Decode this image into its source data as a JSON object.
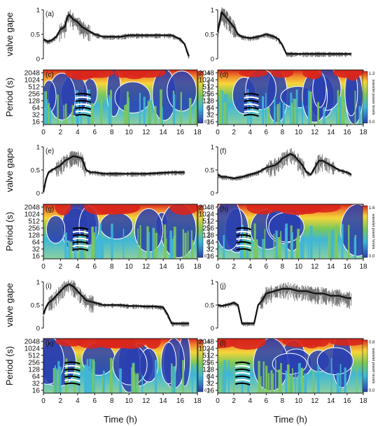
{
  "figure": {
    "row_ylabels": {
      "gape": "valve gape",
      "period": "Period (s)"
    },
    "xlabel": "Time (h)",
    "xticks": [
      0,
      2,
      4,
      6,
      8,
      10,
      12,
      14,
      16,
      18
    ],
    "gape_yticks": [
      0,
      0.5,
      1
    ],
    "period_yticks": [
      2048,
      1024,
      512,
      256,
      128,
      64,
      32,
      16
    ],
    "colorbar_label": "wavelet power levels",
    "colors": {
      "trace": "#111111",
      "power_low": "#2a3fb0",
      "power_mid": "#3fb6d6",
      "power_green": "#7cc85a",
      "power_high": "#f6d63a",
      "power_peak": "#d9261c"
    }
  },
  "chart_data": [
    {
      "panel": "(a)",
      "type": "line",
      "ylabel": "valve gape",
      "xlim": [
        0,
        18
      ],
      "ylim": [
        0,
        1
      ],
      "series": [
        {
          "x": [
            0,
            0.5,
            1,
            1.5,
            2,
            2.5,
            2.8,
            3,
            3.5,
            4,
            4.5,
            5,
            5.5,
            6,
            7,
            8,
            9,
            10,
            11,
            12,
            13,
            14,
            15,
            16,
            16.5,
            17
          ],
          "y": [
            0.4,
            0.35,
            0.38,
            0.45,
            0.6,
            0.65,
            0.85,
            0.9,
            0.8,
            0.75,
            0.65,
            0.6,
            0.55,
            0.5,
            0.45,
            0.45,
            0.45,
            0.48,
            0.48,
            0.48,
            0.48,
            0.48,
            0.48,
            0.4,
            0.3,
            0.05
          ]
        }
      ]
    },
    {
      "panel": "(b)",
      "type": "line",
      "ylabel": "valve gape",
      "xlim": [
        0,
        18
      ],
      "ylim": [
        0,
        1
      ],
      "series": [
        {
          "x": [
            0,
            0.3,
            0.5,
            1,
            1.5,
            2,
            2.5,
            3,
            4,
            5,
            6,
            7,
            7.5,
            8,
            8.5,
            9,
            10,
            11,
            12,
            13,
            14,
            15,
            16,
            16.5
          ],
          "y": [
            0.55,
            0.8,
            0.95,
            0.85,
            0.75,
            0.65,
            0.5,
            0.45,
            0.42,
            0.45,
            0.5,
            0.45,
            0.4,
            0.28,
            0.1,
            0.1,
            0.1,
            0.1,
            0.1,
            0.1,
            0.1,
            0.1,
            0.1,
            0.1
          ]
        }
      ]
    },
    {
      "panel": "(c)",
      "type": "heatmap",
      "ylabel": "Period (s)",
      "xlim": [
        0,
        18
      ],
      "colorbar": {
        "max": "1.9",
        "min": "0.0"
      }
    },
    {
      "panel": "(d)",
      "type": "heatmap",
      "ylabel": "Period (s)",
      "xlim": [
        0,
        18
      ],
      "colorbar": {
        "max": "1.3",
        "min": "0.0"
      }
    },
    {
      "panel": "(e)",
      "type": "line",
      "ylabel": "valve gape",
      "xlim": [
        0,
        18
      ],
      "ylim": [
        0,
        1
      ],
      "series": [
        {
          "x": [
            0,
            0.3,
            0.6,
            1,
            1.5,
            2,
            2.5,
            3,
            3.5,
            4,
            4.5,
            5,
            5.5,
            6,
            7,
            8,
            9,
            10,
            11,
            12,
            13,
            14,
            15,
            16,
            16.5
          ],
          "y": [
            0.02,
            0.3,
            0.45,
            0.5,
            0.55,
            0.6,
            0.7,
            0.75,
            0.8,
            0.78,
            0.75,
            0.5,
            0.45,
            0.45,
            0.42,
            0.42,
            0.42,
            0.42,
            0.42,
            0.42,
            0.43,
            0.44,
            0.45,
            0.45,
            0.45
          ]
        }
      ]
    },
    {
      "panel": "(f)",
      "type": "line",
      "ylabel": "valve gape",
      "xlim": [
        0,
        18
      ],
      "ylim": [
        0,
        1
      ],
      "series": [
        {
          "x": [
            0,
            0.5,
            1,
            2,
            3,
            4,
            5,
            5.5,
            6,
            7,
            7.5,
            8,
            9,
            9.5,
            10,
            10.5,
            11,
            11.5,
            12,
            12.5,
            13,
            14,
            15,
            16,
            16.5
          ],
          "y": [
            0.4,
            0.35,
            0.35,
            0.32,
            0.35,
            0.4,
            0.45,
            0.5,
            0.55,
            0.6,
            0.65,
            0.75,
            0.85,
            0.8,
            0.7,
            0.6,
            0.45,
            0.4,
            0.55,
            0.7,
            0.7,
            0.6,
            0.5,
            0.45,
            0.4
          ]
        }
      ]
    },
    {
      "panel": "(g)",
      "type": "heatmap",
      "ylabel": "Period (s)",
      "xlim": [
        0,
        18
      ],
      "colorbar": {
        "max": "1.1",
        "min": "0.0"
      }
    },
    {
      "panel": "(h)",
      "type": "heatmap",
      "ylabel": "Period (s)",
      "xlim": [
        0,
        18
      ],
      "colorbar": {
        "max": "1.6",
        "min": "0.0"
      }
    },
    {
      "panel": "(i)",
      "type": "line",
      "ylabel": "valve gape",
      "xlim": [
        0,
        18
      ],
      "ylim": [
        0,
        1
      ],
      "series": [
        {
          "x": [
            0,
            0.3,
            0.6,
            1,
            1.5,
            2,
            2.5,
            3,
            3.5,
            4,
            4.5,
            5,
            6,
            7,
            8,
            9,
            10,
            11,
            12,
            13,
            14,
            14.5,
            15,
            16,
            17
          ],
          "y": [
            0.3,
            0.45,
            0.55,
            0.6,
            0.7,
            0.8,
            0.9,
            0.95,
            0.9,
            0.8,
            0.7,
            0.6,
            0.55,
            0.5,
            0.5,
            0.5,
            0.48,
            0.48,
            0.47,
            0.47,
            0.45,
            0.3,
            0.1,
            0.1,
            0.1
          ]
        }
      ]
    },
    {
      "panel": "(j)",
      "type": "line",
      "ylabel": "valve gape",
      "xlim": [
        0,
        18
      ],
      "ylim": [
        0,
        1
      ],
      "series": [
        {
          "x": [
            0,
            0.5,
            1,
            1.5,
            2,
            2.5,
            3,
            3.5,
            4,
            4.5,
            5,
            5.5,
            6,
            7,
            8,
            9,
            10,
            11,
            12,
            13,
            14,
            15,
            16,
            16.5
          ],
          "y": [
            0.5,
            0.48,
            0.5,
            0.52,
            0.55,
            0.5,
            0.1,
            0.1,
            0.1,
            0.1,
            0.5,
            0.6,
            0.75,
            0.8,
            0.85,
            0.85,
            0.8,
            0.8,
            0.75,
            0.75,
            0.7,
            0.7,
            0.65,
            0.65
          ]
        }
      ]
    },
    {
      "panel": "(k)",
      "type": "heatmap",
      "ylabel": "Period (s)",
      "xlim": [
        0,
        18
      ],
      "colorbar": {
        "max": "1.0",
        "min": "0.0"
      }
    },
    {
      "panel": "(l)",
      "type": "heatmap",
      "ylabel": "Period (s)",
      "xlim": [
        0,
        18
      ],
      "colorbar": {
        "max": "0.8",
        "min": "0.0"
      }
    }
  ]
}
